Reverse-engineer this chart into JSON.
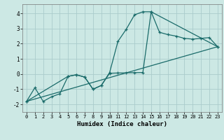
{
  "title": "",
  "xlabel": "Humidex (Indice chaleur)",
  "bg_color": "#cce8e4",
  "grid_color": "#aacccc",
  "line_color": "#1a6b6a",
  "xlim": [
    -0.5,
    23.5
  ],
  "ylim": [
    -2.5,
    4.6
  ],
  "xticks": [
    0,
    1,
    2,
    3,
    4,
    5,
    6,
    7,
    8,
    9,
    10,
    11,
    12,
    13,
    14,
    15,
    16,
    17,
    18,
    19,
    20,
    21,
    22,
    23
  ],
  "yticks": [
    -2,
    -1,
    0,
    1,
    2,
    3,
    4
  ],
  "line1_x": [
    0,
    1,
    2,
    3,
    4,
    5,
    6,
    7,
    8,
    9,
    10,
    11,
    12,
    13,
    14,
    15,
    16,
    17,
    18,
    19,
    20,
    21,
    22,
    23
  ],
  "line1_y": [
    -1.8,
    -0.9,
    -1.8,
    -1.5,
    -1.3,
    -0.15,
    -0.05,
    -0.2,
    -1.0,
    -0.75,
    0.1,
    2.15,
    2.95,
    3.9,
    4.1,
    4.1,
    2.75,
    2.6,
    2.5,
    2.35,
    2.3,
    2.35,
    2.4,
    1.8
  ],
  "line2_x": [
    0,
    5,
    6,
    7,
    8,
    9,
    10,
    11,
    12,
    13,
    14,
    15,
    23
  ],
  "line2_y": [
    -1.8,
    -0.15,
    -0.05,
    -0.2,
    -1.0,
    -0.75,
    0.05,
    0.07,
    0.08,
    0.09,
    0.1,
    4.1,
    1.8
  ],
  "line3_x": [
    0,
    23
  ],
  "line3_y": [
    -1.8,
    1.8
  ]
}
